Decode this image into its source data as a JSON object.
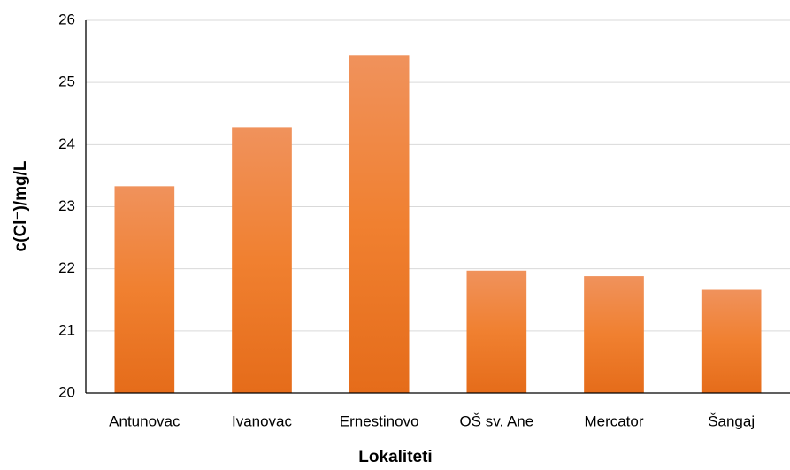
{
  "chart_data": {
    "type": "bar",
    "x_label": "Lokaliteti",
    "y_label": "c(Cl⁻)/mg/L",
    "categories": [
      "Antunovac",
      "Ivanovac",
      "Ernestinovo",
      "OŠ sv. Ane",
      "Mercator",
      "Šangaj"
    ],
    "values": [
      23.33,
      24.27,
      25.44,
      21.97,
      21.88,
      21.66
    ],
    "color": "#ed7d31",
    "ylim": [
      20,
      26
    ],
    "yticks": [
      20,
      21,
      22,
      23,
      24,
      25,
      26
    ],
    "grid": true
  }
}
